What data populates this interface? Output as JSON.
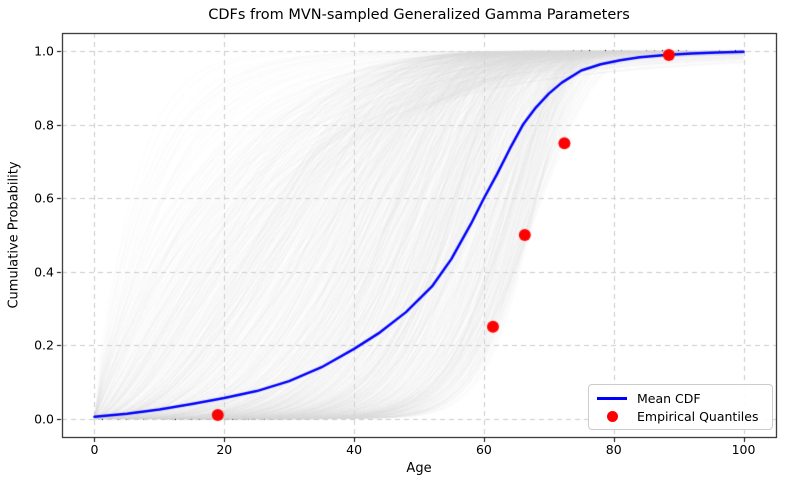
{
  "figure_title": "CDFs from MVN-sampled Generalized Gamma Parameters",
  "chart_data": {
    "type": "line",
    "title": "CDFs from MVN-sampled Generalized Gamma Parameters",
    "xlabel": "Age",
    "ylabel": "Cumulative Probability",
    "xlim": [
      -5,
      105
    ],
    "ylim": [
      -0.05,
      1.05
    ],
    "x_ticks": [
      0,
      20,
      40,
      60,
      80,
      100
    ],
    "x_tick_labels": [
      "0",
      "20",
      "40",
      "60",
      "80",
      "100"
    ],
    "y_ticks": [
      0.0,
      0.2,
      0.4,
      0.6,
      0.8,
      1.0
    ],
    "y_tick_labels": [
      "0.0",
      "0.2",
      "0.4",
      "0.6",
      "0.8",
      "1.0"
    ],
    "grid": true,
    "grid_style": {
      "color": "#cccccc",
      "dash": [
        5,
        4
      ],
      "linewidth": 1
    },
    "legend_position": "lower right",
    "series": [
      {
        "name": "Mean CDF",
        "type": "line",
        "color": "#0000ff",
        "linewidth": 2.5,
        "x": [
          0,
          5,
          10,
          15,
          20,
          25,
          30,
          35,
          40,
          44,
          48,
          52,
          55,
          58,
          60,
          62,
          64,
          66,
          68,
          70,
          72,
          75,
          78,
          81,
          84,
          88,
          92,
          96,
          100
        ],
        "y": [
          0.005,
          0.013,
          0.025,
          0.04,
          0.056,
          0.075,
          0.102,
          0.14,
          0.19,
          0.235,
          0.29,
          0.36,
          0.435,
          0.53,
          0.6,
          0.665,
          0.735,
          0.8,
          0.847,
          0.885,
          0.915,
          0.948,
          0.965,
          0.976,
          0.984,
          0.99,
          0.994,
          0.997,
          0.999
        ]
      },
      {
        "name": "Empirical Quantiles",
        "type": "scatter",
        "color": "#ff0000",
        "markersize": 6,
        "x": [
          19,
          61.4,
          66.3,
          72.4,
          88.5
        ],
        "y": [
          0.01,
          0.25,
          0.5,
          0.75,
          0.99
        ]
      }
    ],
    "ensemble": {
      "description": "MVN-sampled generalized gamma CDF curves",
      "color": "#d3d3d3",
      "opacity": 0.08,
      "count": 1200,
      "seed": 42,
      "x_range": [
        0,
        100
      ]
    }
  },
  "legend": {
    "entries": [
      {
        "label": "Mean CDF",
        "swatch": "line",
        "color": "#0000ff"
      },
      {
        "label": "Empirical Quantiles",
        "swatch": "dot",
        "color": "#ff0000"
      }
    ]
  }
}
